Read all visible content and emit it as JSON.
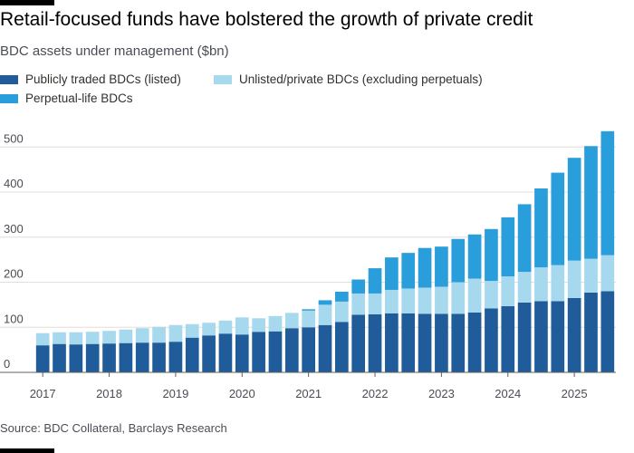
{
  "title": "Retail-focused funds have bolstered the growth of private credit",
  "subtitle": "BDC assets under management ($bn)",
  "source": "Source: BDC Collateral, Barclays Research",
  "chart_data": {
    "type": "bar",
    "stacked": true,
    "title": "Retail-focused funds have bolstered the growth of private credit",
    "ylabel": "BDC assets under management ($bn)",
    "xlabel": "",
    "ylim": [
      0,
      550
    ],
    "yticks": [
      0,
      100,
      200,
      300,
      400,
      500
    ],
    "grid": true,
    "legend_position": "top-left",
    "x_tick_labels": [
      "2017",
      "2018",
      "2019",
      "2020",
      "2021",
      "2022",
      "2023",
      "2024",
      "2025"
    ],
    "categories": [
      "2017 Q1",
      "2017 Q2",
      "2017 Q3",
      "2017 Q4",
      "2018 Q1",
      "2018 Q2",
      "2018 Q3",
      "2018 Q4",
      "2019 Q1",
      "2019 Q2",
      "2019 Q3",
      "2019 Q4",
      "2020 Q1",
      "2020 Q2",
      "2020 Q3",
      "2020 Q4",
      "2021 Q1",
      "2021 Q2",
      "2021 Q3",
      "2021 Q4",
      "2022 Q1",
      "2022 Q2",
      "2022 Q3",
      "2022 Q4",
      "2023 Q1",
      "2023 Q2",
      "2023 Q3",
      "2023 Q4",
      "2024 Q1",
      "2024 Q2",
      "2024 Q3",
      "2024 Q4",
      "2025 Q1",
      "2025 Q2",
      "2025 Q3"
    ],
    "series": [
      {
        "name": "Publicly traded BDCs (listed)",
        "color": "#1f5c99",
        "values": [
          60,
          63,
          62,
          63,
          64,
          65,
          66,
          66,
          68,
          77,
          82,
          86,
          84,
          90,
          91,
          98,
          100,
          105,
          112,
          128,
          129,
          131,
          131,
          130,
          130,
          130,
          133,
          142,
          147,
          155,
          158,
          158,
          165,
          177,
          180
        ]
      },
      {
        "name": "Unlisted/private BDCs (excluding perpetuals)",
        "color": "#a6d8ee",
        "values": [
          27,
          26,
          27,
          27,
          28,
          30,
          32,
          35,
          37,
          30,
          28,
          29,
          38,
          30,
          34,
          34,
          37,
          45,
          45,
          47,
          46,
          52,
          55,
          58,
          60,
          70,
          75,
          61,
          66,
          68,
          75,
          80,
          83,
          75,
          80
        ]
      },
      {
        "name": "Perpetual-life BDCs",
        "color": "#2a9ddb",
        "values": [
          0,
          0,
          0,
          0,
          0,
          0,
          0,
          0,
          0,
          0,
          0,
          0,
          0,
          0,
          0,
          0,
          3,
          10,
          22,
          31,
          56,
          72,
          79,
          88,
          89,
          96,
          98,
          115,
          131,
          150,
          175,
          205,
          228,
          250,
          275
        ]
      }
    ]
  }
}
